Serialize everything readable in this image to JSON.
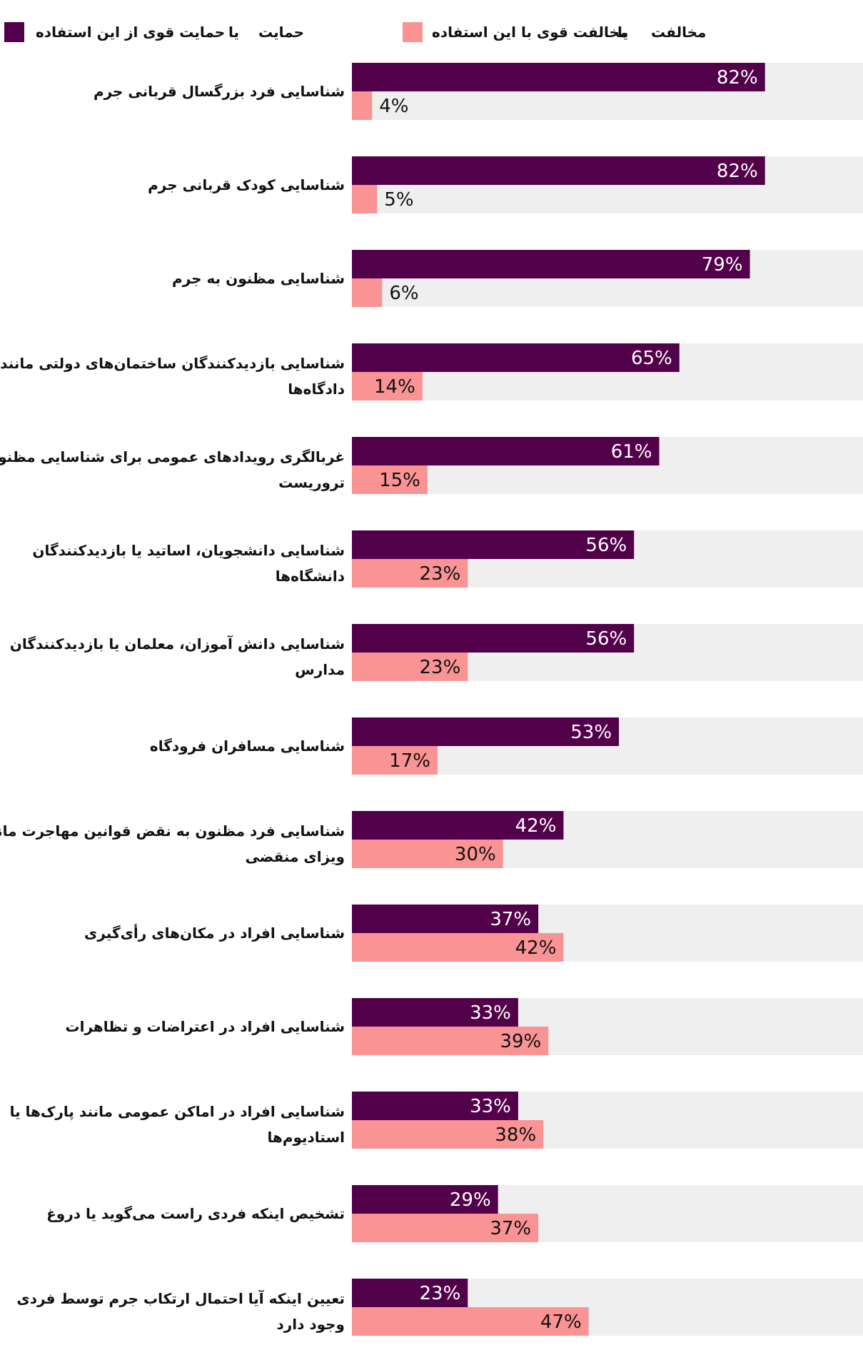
{
  "legend": {
    "support_label": "حمایت",
    "or_label": "یا",
    "strong_support_label": "حمایت قوی از این استفاده",
    "oppose_label": "مخالفت",
    "strong_oppose_label": "مخالفت قوی با این استفاده"
  },
  "colors": {
    "support": "#52004a",
    "oppose": "#f99394",
    "track": "#efefef"
  },
  "chart_data": {
    "type": "bar",
    "orientation": "horizontal",
    "xlim": [
      0,
      100
    ],
    "categories": [
      [
        "شناسایی فرد بزرگسال قربانی جرم"
      ],
      [
        "شناسایی کودک قربانی جرم"
      ],
      [
        "شناسایی مظنون به جرم"
      ],
      [
        "شناسایی بازدیدکنندگان ساختمان‌های دولتی مانند",
        "دادگاه‌ها"
      ],
      [
        "غربالگری رویدادهای عمومی برای شناسایی مظنونان",
        "تروریست"
      ],
      [
        "شناسایی دانشجویان، اساتید یا بازدیدکنندگان",
        "دانشگاه‌ها"
      ],
      [
        "شناسایی دانش آموزان، معلمان یا بازدیدکنندگان",
        "مدارس"
      ],
      [
        "شناسایی مسافران فرودگاه"
      ],
      [
        "شناسایی فرد مظنون به نقض قوانین مهاجرت مانند",
        "ویزای منقضی"
      ],
      [
        "شناسایی افراد در مکان‌های رأی‌گیری"
      ],
      [
        "شناسایی افراد در اعتراضات و تظاهرات"
      ],
      [
        "شناسایی افراد در اماکن عمومی مانند پارک‌ها یا",
        "استادیوم‌ها"
      ],
      [
        "تشخیص اینکه فردی راست می‌گوید یا دروغ"
      ],
      [
        "تعیین اینکه آیا احتمال ارتکاب جرم توسط فردی",
        "وجود دارد"
      ]
    ],
    "series": [
      {
        "key": "support",
        "values": [
          82,
          82,
          79,
          65,
          61,
          56,
          56,
          53,
          42,
          37,
          33,
          33,
          29,
          23
        ],
        "labels": [
          "82%",
          "82%",
          "79%",
          "65%",
          "61%",
          "56%",
          "56%",
          "53%",
          "42%",
          "37%",
          "33%",
          "33%",
          "29%",
          "23%"
        ]
      },
      {
        "key": "oppose",
        "values": [
          4,
          5,
          6,
          14,
          15,
          23,
          23,
          17,
          30,
          42,
          39,
          38,
          37,
          47
        ],
        "labels": [
          "4%",
          "5%",
          "6%",
          "14%",
          "15%",
          "23%",
          "23%",
          "17%",
          "30%",
          "42%",
          "39%",
          "38%",
          "37%",
          "47%"
        ]
      }
    ]
  }
}
